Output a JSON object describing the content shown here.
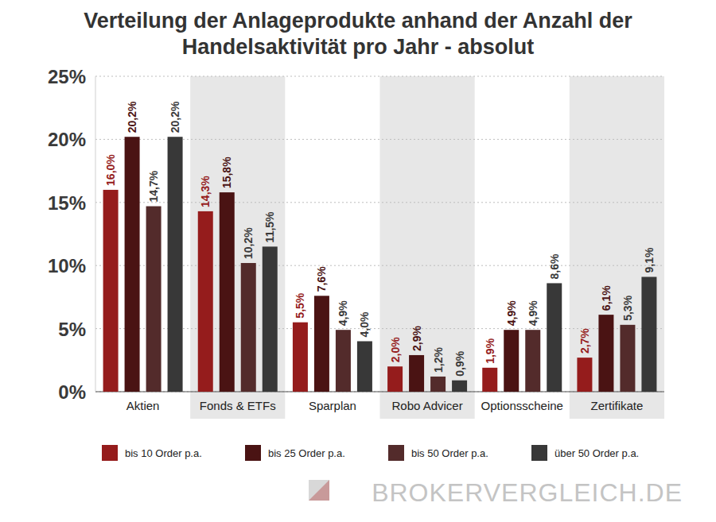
{
  "chart_data": {
    "type": "bar",
    "title": "Verteilung der Anlageprodukte anhand der Anzahl der Handelsaktivität pro Jahr - absolut",
    "categories": [
      "Aktien",
      "Fonds & ETFs",
      "Sparplan",
      "Robo Advicer",
      "Optionsscheine",
      "Zertifikate"
    ],
    "series": [
      {
        "name": "bis 10 Order p.a.",
        "color": "#951c1c",
        "values": [
          16.0,
          14.3,
          5.5,
          2.0,
          1.9,
          2.7
        ],
        "value_labels": [
          "16,0%",
          "14,3%",
          "5,5%",
          "2,0%",
          "1,9%",
          "2,7%"
        ]
      },
      {
        "name": "bis 25 Order p.a.",
        "color": "#4a1313",
        "values": [
          20.2,
          15.8,
          7.6,
          2.9,
          4.9,
          6.1
        ],
        "value_labels": [
          "20,2%",
          "15,8%",
          "7,6%",
          "2,9%",
          "4,9%",
          "6,1%"
        ]
      },
      {
        "name": "bis 50 Order p.a.",
        "color": "#532b2b",
        "values": [
          14.7,
          10.2,
          4.9,
          1.2,
          4.9,
          5.3
        ],
        "value_labels": [
          "14,7%",
          "10,2%",
          "4,9%",
          "1,2%",
          "4,9%",
          "5,3%"
        ]
      },
      {
        "name": "über 50 Order p.a.",
        "color": "#383838",
        "values": [
          20.2,
          11.5,
          4.0,
          0.9,
          8.6,
          9.1
        ],
        "value_labels": [
          "20,2%",
          "11,5%",
          "4,0%",
          "0,9%",
          "8,6%",
          "9,1%"
        ]
      }
    ],
    "ylim": [
      0,
      25
    ],
    "yticks": [
      {
        "value": 0,
        "label": "0%"
      },
      {
        "value": 5,
        "label": "5%"
      },
      {
        "value": 10,
        "label": "10%"
      },
      {
        "value": 15,
        "label": "15%"
      },
      {
        "value": 20,
        "label": "20%"
      },
      {
        "value": 25,
        "label": "25%"
      }
    ],
    "grid": true,
    "legend": "bottom",
    "data_labels": true,
    "annotations": [
      "BROKERVERGLEICH.DE"
    ]
  }
}
